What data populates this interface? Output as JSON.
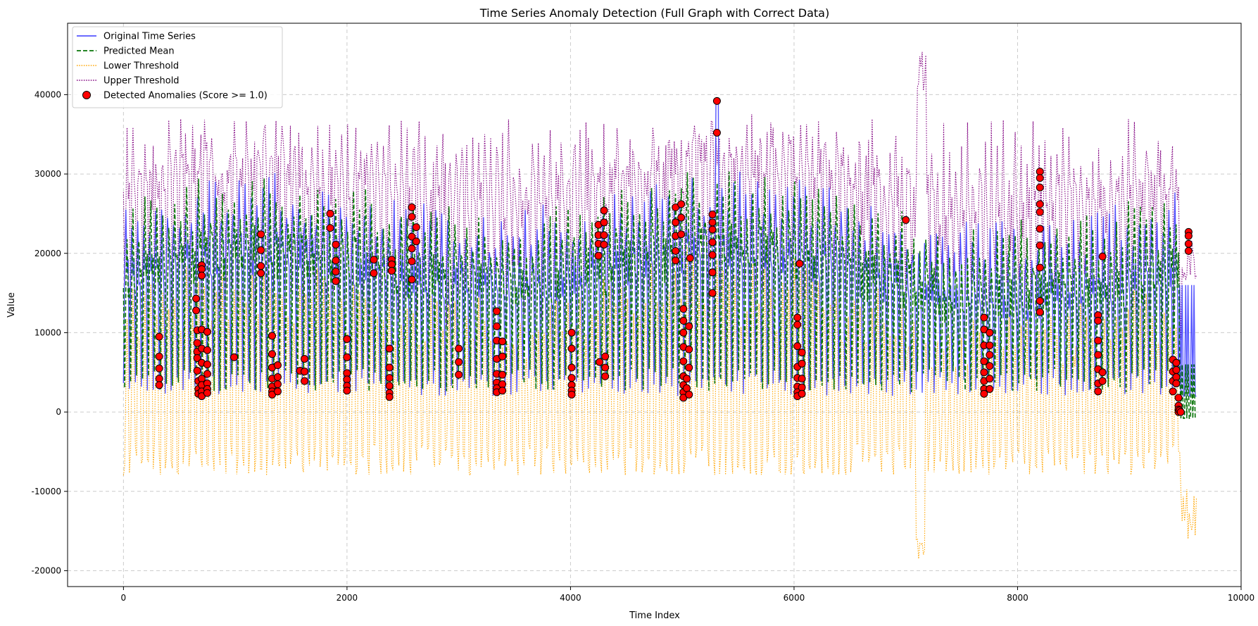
{
  "chart_data": {
    "type": "line",
    "title": "Time Series Anomaly Detection (Full Graph with Correct Data)",
    "xlabel": "Time Index",
    "ylabel": "Value",
    "xlim": [
      -500,
      10000
    ],
    "ylim": [
      -22000,
      49000
    ],
    "xticks": [
      0,
      2000,
      4000,
      6000,
      8000,
      10000
    ],
    "yticks": [
      -20000,
      -10000,
      0,
      10000,
      20000,
      30000,
      40000
    ],
    "grid": true,
    "legend_position": "top-left",
    "colors": {
      "original": "#3a3aff",
      "predicted": "#087408",
      "lower": "#ffa500",
      "upper": "#800080",
      "anomaly_fill": "#ff0000",
      "anomaly_edge": "#000000"
    },
    "legend": [
      {
        "key": "original",
        "label": "Original Time Series",
        "style": "solid"
      },
      {
        "key": "predicted",
        "label": "Predicted Mean",
        "style": "dashed"
      },
      {
        "key": "lower",
        "label": "Lower Threshold",
        "style": "dotted"
      },
      {
        "key": "upper",
        "label": "Upper Threshold",
        "style": "dotted"
      },
      {
        "key": "anomaly",
        "label": "Detected Anomalies (Score >= 1.0)",
        "style": "marker"
      }
    ],
    "series_summary": {
      "x_range": [
        0,
        9600
      ],
      "original": {
        "min": 1500,
        "max": 39000,
        "typical": [
          2000,
          26000
        ]
      },
      "predicted": {
        "min": -1200,
        "max": 29000,
        "typical": [
          3000,
          26000
        ]
      },
      "lower": {
        "min": -18500,
        "max": 14000,
        "typical": [
          -6000,
          12000
        ]
      },
      "upper": {
        "min": 14000,
        "max": 46000,
        "typical": [
          22000,
          38000
        ]
      }
    },
    "anomalies": [
      {
        "x": 320,
        "y": 9500
      },
      {
        "x": 320,
        "y": 7000
      },
      {
        "x": 320,
        "y": 5500
      },
      {
        "x": 320,
        "y": 4200
      },
      {
        "x": 320,
        "y": 3400
      },
      {
        "x": 650,
        "y": 14300
      },
      {
        "x": 650,
        "y": 12800
      },
      {
        "x": 660,
        "y": 10300
      },
      {
        "x": 660,
        "y": 8700
      },
      {
        "x": 660,
        "y": 7600
      },
      {
        "x": 660,
        "y": 6800
      },
      {
        "x": 660,
        "y": 5200
      },
      {
        "x": 670,
        "y": 3900
      },
      {
        "x": 670,
        "y": 2900
      },
      {
        "x": 670,
        "y": 2300
      },
      {
        "x": 700,
        "y": 18500
      },
      {
        "x": 700,
        "y": 18000
      },
      {
        "x": 700,
        "y": 17200
      },
      {
        "x": 700,
        "y": 10400
      },
      {
        "x": 700,
        "y": 8000
      },
      {
        "x": 700,
        "y": 6200
      },
      {
        "x": 700,
        "y": 4200
      },
      {
        "x": 700,
        "y": 3400
      },
      {
        "x": 700,
        "y": 2600
      },
      {
        "x": 700,
        "y": 2000
      },
      {
        "x": 750,
        "y": 10100
      },
      {
        "x": 750,
        "y": 7800
      },
      {
        "x": 750,
        "y": 6000
      },
      {
        "x": 750,
        "y": 4800
      },
      {
        "x": 750,
        "y": 3600
      },
      {
        "x": 750,
        "y": 2900
      },
      {
        "x": 750,
        "y": 2400
      },
      {
        "x": 990,
        "y": 6900
      },
      {
        "x": 1230,
        "y": 22400
      },
      {
        "x": 1230,
        "y": 20400
      },
      {
        "x": 1230,
        "y": 18400
      },
      {
        "x": 1230,
        "y": 17500
      },
      {
        "x": 1330,
        "y": 9600
      },
      {
        "x": 1330,
        "y": 7300
      },
      {
        "x": 1330,
        "y": 5600
      },
      {
        "x": 1330,
        "y": 4200
      },
      {
        "x": 1330,
        "y": 3200
      },
      {
        "x": 1330,
        "y": 2600
      },
      {
        "x": 1330,
        "y": 2200
      },
      {
        "x": 1380,
        "y": 5900
      },
      {
        "x": 1380,
        "y": 4400
      },
      {
        "x": 1380,
        "y": 3500
      },
      {
        "x": 1380,
        "y": 2600
      },
      {
        "x": 1580,
        "y": 5200
      },
      {
        "x": 1620,
        "y": 6700
      },
      {
        "x": 1620,
        "y": 5100
      },
      {
        "x": 1620,
        "y": 3900
      },
      {
        "x": 1850,
        "y": 25000
      },
      {
        "x": 1850,
        "y": 23200
      },
      {
        "x": 1900,
        "y": 21100
      },
      {
        "x": 1900,
        "y": 19100
      },
      {
        "x": 1900,
        "y": 17700
      },
      {
        "x": 1900,
        "y": 16500
      },
      {
        "x": 2000,
        "y": 9200
      },
      {
        "x": 2000,
        "y": 6900
      },
      {
        "x": 2000,
        "y": 4900
      },
      {
        "x": 2000,
        "y": 4100
      },
      {
        "x": 2000,
        "y": 3300
      },
      {
        "x": 2000,
        "y": 2700
      },
      {
        "x": 2240,
        "y": 19200
      },
      {
        "x": 2240,
        "y": 17500
      },
      {
        "x": 2380,
        "y": 8000
      },
      {
        "x": 2380,
        "y": 5600
      },
      {
        "x": 2380,
        "y": 4300
      },
      {
        "x": 2380,
        "y": 3300
      },
      {
        "x": 2380,
        "y": 2400
      },
      {
        "x": 2380,
        "y": 1900
      },
      {
        "x": 2400,
        "y": 19200
      },
      {
        "x": 2400,
        "y": 18600
      },
      {
        "x": 2400,
        "y": 17800
      },
      {
        "x": 2580,
        "y": 25800
      },
      {
        "x": 2580,
        "y": 24600
      },
      {
        "x": 2580,
        "y": 22100
      },
      {
        "x": 2580,
        "y": 20600
      },
      {
        "x": 2580,
        "y": 19000
      },
      {
        "x": 2580,
        "y": 16700
      },
      {
        "x": 2620,
        "y": 23300
      },
      {
        "x": 2620,
        "y": 21500
      },
      {
        "x": 3000,
        "y": 8000
      },
      {
        "x": 3000,
        "y": 6300
      },
      {
        "x": 3000,
        "y": 4700
      },
      {
        "x": 3340,
        "y": 12700
      },
      {
        "x": 3340,
        "y": 10800
      },
      {
        "x": 3340,
        "y": 9000
      },
      {
        "x": 3340,
        "y": 6700
      },
      {
        "x": 3340,
        "y": 4800
      },
      {
        "x": 3340,
        "y": 3700
      },
      {
        "x": 3340,
        "y": 3000
      },
      {
        "x": 3340,
        "y": 2500
      },
      {
        "x": 3390,
        "y": 8900
      },
      {
        "x": 3390,
        "y": 7000
      },
      {
        "x": 3390,
        "y": 4700
      },
      {
        "x": 3390,
        "y": 3500
      },
      {
        "x": 3390,
        "y": 2700
      },
      {
        "x": 4010,
        "y": 10000
      },
      {
        "x": 4010,
        "y": 8000
      },
      {
        "x": 4010,
        "y": 5600
      },
      {
        "x": 4010,
        "y": 4300
      },
      {
        "x": 4010,
        "y": 3400
      },
      {
        "x": 4010,
        "y": 2700
      },
      {
        "x": 4010,
        "y": 2200
      },
      {
        "x": 4250,
        "y": 23600
      },
      {
        "x": 4250,
        "y": 22300
      },
      {
        "x": 4250,
        "y": 21200
      },
      {
        "x": 4250,
        "y": 19700
      },
      {
        "x": 4260,
        "y": 6300
      },
      {
        "x": 4300,
        "y": 25400
      },
      {
        "x": 4300,
        "y": 23900
      },
      {
        "x": 4300,
        "y": 22300
      },
      {
        "x": 4300,
        "y": 21100
      },
      {
        "x": 4310,
        "y": 7000
      },
      {
        "x": 4310,
        "y": 5600
      },
      {
        "x": 4310,
        "y": 4500
      },
      {
        "x": 4940,
        "y": 25800
      },
      {
        "x": 4940,
        "y": 23900
      },
      {
        "x": 4940,
        "y": 22200
      },
      {
        "x": 4940,
        "y": 20300
      },
      {
        "x": 4940,
        "y": 19100
      },
      {
        "x": 4990,
        "y": 26200
      },
      {
        "x": 4990,
        "y": 24500
      },
      {
        "x": 4990,
        "y": 22400
      },
      {
        "x": 5010,
        "y": 13000
      },
      {
        "x": 5010,
        "y": 11500
      },
      {
        "x": 5010,
        "y": 10000
      },
      {
        "x": 5010,
        "y": 8200
      },
      {
        "x": 5010,
        "y": 6400
      },
      {
        "x": 5010,
        "y": 4500
      },
      {
        "x": 5010,
        "y": 3400
      },
      {
        "x": 5010,
        "y": 2500
      },
      {
        "x": 5010,
        "y": 1800
      },
      {
        "x": 5040,
        "y": 4200
      },
      {
        "x": 5040,
        "y": 3000
      },
      {
        "x": 5060,
        "y": 10800
      },
      {
        "x": 5060,
        "y": 7900
      },
      {
        "x": 5060,
        "y": 5600
      },
      {
        "x": 5060,
        "y": 2200
      },
      {
        "x": 5070,
        "y": 19400
      },
      {
        "x": 5270,
        "y": 24900
      },
      {
        "x": 5270,
        "y": 23900
      },
      {
        "x": 5270,
        "y": 23000
      },
      {
        "x": 5270,
        "y": 21400
      },
      {
        "x": 5270,
        "y": 19800
      },
      {
        "x": 5270,
        "y": 17600
      },
      {
        "x": 5270,
        "y": 15000
      },
      {
        "x": 5310,
        "y": 39200
      },
      {
        "x": 5310,
        "y": 35200
      },
      {
        "x": 6030,
        "y": 11900
      },
      {
        "x": 6030,
        "y": 11000
      },
      {
        "x": 6030,
        "y": 8300
      },
      {
        "x": 6030,
        "y": 5700
      },
      {
        "x": 6030,
        "y": 4300
      },
      {
        "x": 6030,
        "y": 3200
      },
      {
        "x": 6030,
        "y": 2500
      },
      {
        "x": 6030,
        "y": 2000
      },
      {
        "x": 6050,
        "y": 18700
      },
      {
        "x": 6070,
        "y": 7500
      },
      {
        "x": 6070,
        "y": 6100
      },
      {
        "x": 6070,
        "y": 4200
      },
      {
        "x": 6070,
        "y": 3100
      },
      {
        "x": 6070,
        "y": 2300
      },
      {
        "x": 7000,
        "y": 24200
      },
      {
        "x": 7700,
        "y": 11900
      },
      {
        "x": 7700,
        "y": 10400
      },
      {
        "x": 7700,
        "y": 8400
      },
      {
        "x": 7700,
        "y": 6400
      },
      {
        "x": 7700,
        "y": 5000
      },
      {
        "x": 7700,
        "y": 3900
      },
      {
        "x": 7700,
        "y": 2900
      },
      {
        "x": 7700,
        "y": 2300
      },
      {
        "x": 7750,
        "y": 10000
      },
      {
        "x": 7750,
        "y": 8400
      },
      {
        "x": 7750,
        "y": 7200
      },
      {
        "x": 7750,
        "y": 5800
      },
      {
        "x": 7750,
        "y": 4200
      },
      {
        "x": 7750,
        "y": 2900
      },
      {
        "x": 8200,
        "y": 30300
      },
      {
        "x": 8200,
        "y": 29500
      },
      {
        "x": 8200,
        "y": 28300
      },
      {
        "x": 8200,
        "y": 26200
      },
      {
        "x": 8200,
        "y": 25200
      },
      {
        "x": 8200,
        "y": 23100
      },
      {
        "x": 8200,
        "y": 21000
      },
      {
        "x": 8200,
        "y": 18200
      },
      {
        "x": 8200,
        "y": 14000
      },
      {
        "x": 8200,
        "y": 12600
      },
      {
        "x": 8720,
        "y": 12200
      },
      {
        "x": 8720,
        "y": 11500
      },
      {
        "x": 8720,
        "y": 9000
      },
      {
        "x": 8720,
        "y": 7200
      },
      {
        "x": 8720,
        "y": 5400
      },
      {
        "x": 8720,
        "y": 3600
      },
      {
        "x": 8720,
        "y": 2600
      },
      {
        "x": 8760,
        "y": 19600
      },
      {
        "x": 8760,
        "y": 5000
      },
      {
        "x": 8760,
        "y": 3900
      },
      {
        "x": 9390,
        "y": 6600
      },
      {
        "x": 9390,
        "y": 5100
      },
      {
        "x": 9390,
        "y": 3900
      },
      {
        "x": 9390,
        "y": 2600
      },
      {
        "x": 9420,
        "y": 6200
      },
      {
        "x": 9420,
        "y": 5300
      },
      {
        "x": 9420,
        "y": 4400
      },
      {
        "x": 9420,
        "y": 3600
      },
      {
        "x": 9440,
        "y": 1800
      },
      {
        "x": 9440,
        "y": 800
      },
      {
        "x": 9440,
        "y": 300
      },
      {
        "x": 9440,
        "y": 0
      },
      {
        "x": 9450,
        "y": 200
      },
      {
        "x": 9460,
        "y": 0
      },
      {
        "x": 9530,
        "y": 22700
      },
      {
        "x": 9530,
        "y": 22200
      },
      {
        "x": 9530,
        "y": 21200
      },
      {
        "x": 9530,
        "y": 20300
      }
    ]
  }
}
